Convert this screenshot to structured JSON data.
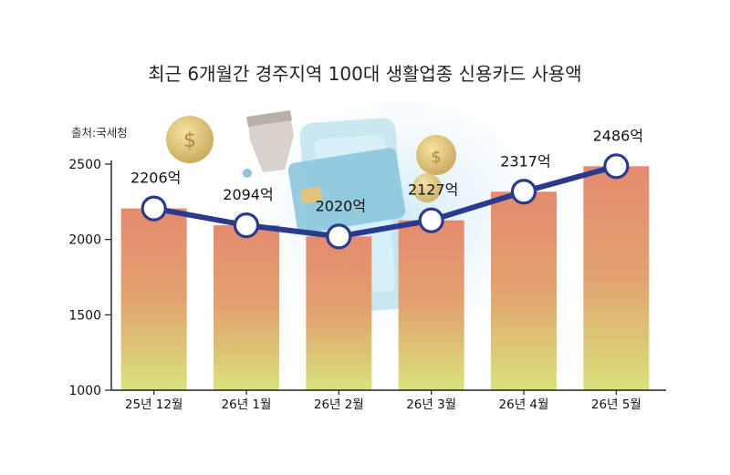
{
  "title": "최근 6개월간 경주지역 100대 생활업종 신용카드 사용액",
  "source": "출처:국세청",
  "colors": {
    "bar_top": "#e58a6e",
    "bar_bottom": "#d9e27a",
    "line": "#2a3b8f",
    "marker_fill": "#ffffff",
    "axis": "#222222"
  },
  "chart_data": {
    "type": "bar",
    "categories": [
      "25년 12월",
      "26년 1월",
      "26년 2월",
      "26년 3월",
      "26년 4월",
      "26년 5월"
    ],
    "values": [
      2206,
      2094,
      2020,
      2127,
      2317,
      2486
    ],
    "data_labels": [
      "2206억",
      "2094억",
      "2020억",
      "2127억",
      "2317억",
      "2486억"
    ],
    "overlay": "line with circular markers through the same values",
    "ylim": [
      1000,
      2500
    ],
    "yticks": [
      1000,
      1500,
      2000,
      2500
    ],
    "ytick_labels": [
      "1000",
      "1500",
      "2000",
      "2500"
    ],
    "xlabel": "",
    "ylabel": "",
    "grid": false,
    "legend": "none"
  }
}
